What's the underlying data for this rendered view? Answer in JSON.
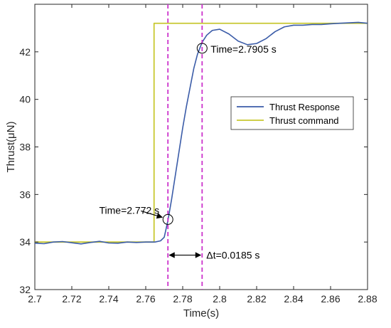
{
  "chart_data": {
    "type": "line",
    "title": "",
    "xlabel": "Time(s)",
    "ylabel": "Thrust(μN)",
    "xlim": [
      2.7,
      2.88
    ],
    "ylim": [
      32,
      44
    ],
    "x_ticks": [
      2.7,
      2.72,
      2.74,
      2.76,
      2.78,
      2.8,
      2.82,
      2.84,
      2.86,
      2.88
    ],
    "x_tick_labels": [
      "2.7",
      "2.72",
      "2.74",
      "2.76",
      "2.78",
      "2.8",
      "2.82",
      "2.84",
      "2.86",
      "2.88"
    ],
    "y_ticks": [
      32,
      34,
      36,
      38,
      40,
      42
    ],
    "y_tick_labels": [
      "32",
      "34",
      "36",
      "38",
      "40",
      "42"
    ],
    "grid": false,
    "legend_position": "center-right",
    "series": [
      {
        "name": "Thrust Response",
        "color": "#3b5ca8",
        "x": [
          2.7,
          2.705,
          2.71,
          2.715,
          2.72,
          2.725,
          2.73,
          2.735,
          2.74,
          2.745,
          2.75,
          2.755,
          2.76,
          2.765,
          2.768,
          2.77,
          2.772,
          2.774,
          2.776,
          2.778,
          2.78,
          2.782,
          2.784,
          2.786,
          2.788,
          2.7905,
          2.793,
          2.796,
          2.8,
          2.805,
          2.81,
          2.815,
          2.82,
          2.825,
          2.83,
          2.835,
          2.84,
          2.845,
          2.85,
          2.855,
          2.86,
          2.865,
          2.87,
          2.875,
          2.88
        ],
        "y": [
          33.95,
          33.93,
          34.0,
          34.02,
          33.97,
          33.92,
          33.98,
          34.03,
          33.96,
          33.95,
          34.0,
          33.98,
          34.0,
          34.0,
          34.05,
          34.2,
          34.9,
          35.8,
          36.8,
          37.8,
          38.8,
          39.7,
          40.5,
          41.3,
          41.9,
          42.4,
          42.7,
          42.9,
          42.95,
          42.75,
          42.45,
          42.3,
          42.35,
          42.55,
          42.85,
          43.05,
          43.12,
          43.12,
          43.15,
          43.15,
          43.18,
          43.2,
          43.22,
          43.24,
          43.2
        ]
      },
      {
        "name": "Thrust command",
        "color": "#c8c830",
        "x": [
          2.7,
          2.7645,
          2.7645,
          2.88
        ],
        "y": [
          34.0,
          34.0,
          43.2,
          43.2
        ]
      }
    ],
    "vertical_lines": [
      {
        "x": 2.772,
        "color": "#cc33cc"
      },
      {
        "x": 2.7905,
        "color": "#cc33cc"
      }
    ],
    "markers": [
      {
        "x": 2.772,
        "y": 34.95
      },
      {
        "x": 2.7905,
        "y": 42.15
      }
    ],
    "annotations": [
      {
        "text": "Time=2.772 s"
      },
      {
        "text": "Time=2.7905 s"
      },
      {
        "text": "Δt=0.0185 s"
      }
    ]
  }
}
